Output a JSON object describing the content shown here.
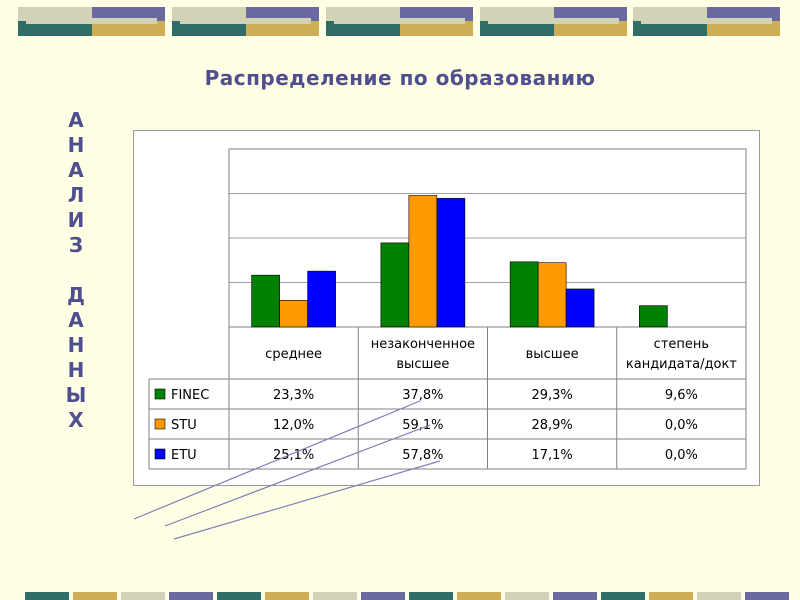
{
  "title": "Распределение по образованию",
  "vertical_label": [
    "А",
    "Н",
    "А",
    "Л",
    "И",
    "З",
    "",
    "Д",
    "А",
    "Н",
    "Н",
    "Ы",
    "Х"
  ],
  "colors": {
    "background": "#FFFFE5",
    "title": "#4F4F8F",
    "deco_dark": "#6A6AA0",
    "deco_gold": "#CDAE54",
    "deco_teal": "#2F6E66",
    "deco_light": "#D2D2B6"
  },
  "chart_data": {
    "type": "bar",
    "categories": [
      "среднее",
      "незаконченное высшее",
      "высшее",
      "степень кандидата/докт"
    ],
    "category_lines": [
      [
        "среднее"
      ],
      [
        "незаконченное",
        "высшее"
      ],
      [
        "высшее"
      ],
      [
        "степень",
        "кандидата/докт"
      ]
    ],
    "series": [
      {
        "name": "FINEC",
        "values": [
          23.3,
          37.8,
          29.3,
          9.6
        ],
        "labels": [
          "23,3%",
          "37,8%",
          "29,3%",
          "9,6%"
        ],
        "color": "#008000"
      },
      {
        "name": "STU",
        "values": [
          12.0,
          59.1,
          28.9,
          0.0
        ],
        "labels": [
          "12,0%",
          "59,1%",
          "28,9%",
          "0,0%"
        ],
        "color": "#FF9900"
      },
      {
        "name": "ETU",
        "values": [
          25.1,
          57.8,
          17.1,
          0.0
        ],
        "labels": [
          "25,1%",
          "57,8%",
          "17,1%",
          "0,0%"
        ],
        "color": "#0000FF"
      }
    ],
    "ylim": [
      0,
      80
    ],
    "grid": true,
    "legend": "data-table"
  }
}
